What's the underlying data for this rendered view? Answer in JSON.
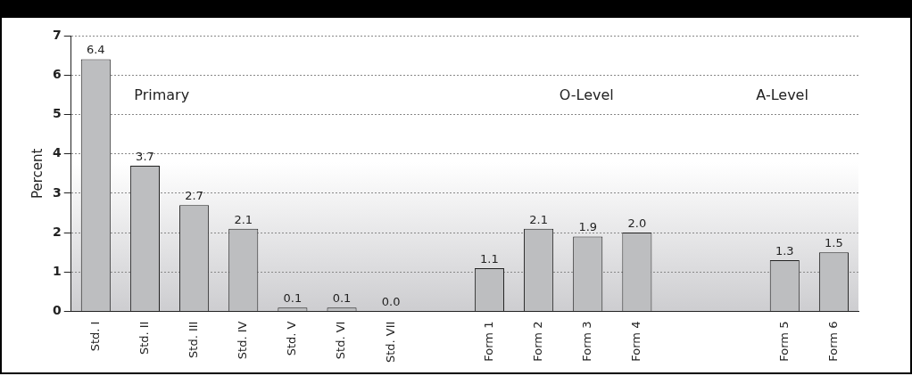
{
  "chart_data": {
    "type": "bar",
    "categories": [
      "Std. I",
      "Std. II",
      "Std. III",
      "Std. IV",
      "Std. V",
      "Std. VI",
      "Std. VII",
      null,
      "Form 1",
      "Form 2",
      "Form 3",
      "Form 4",
      null,
      null,
      "Form 5",
      "Form 6"
    ],
    "values": [
      6.4,
      3.7,
      2.7,
      2.1,
      0.1,
      0.1,
      0.0,
      null,
      1.1,
      2.1,
      1.9,
      2.0,
      null,
      null,
      1.3,
      1.5
    ],
    "value_labels": [
      "6.4",
      "3.7",
      "2.7",
      "2.1",
      "0.1",
      "0.1",
      "0.0",
      null,
      "1.1",
      "2.1",
      "1.9",
      "2.0",
      null,
      null,
      "1.3",
      "1.5"
    ],
    "color": "#bdbec0",
    "ylabel": "Percent",
    "ylim": [
      0,
      7
    ],
    "yticks": [
      0,
      1,
      2,
      3,
      4,
      5,
      6,
      7
    ],
    "grid": "y",
    "legend": false,
    "annotations": [
      "Primary",
      "O-Level",
      "A-Level"
    ]
  }
}
